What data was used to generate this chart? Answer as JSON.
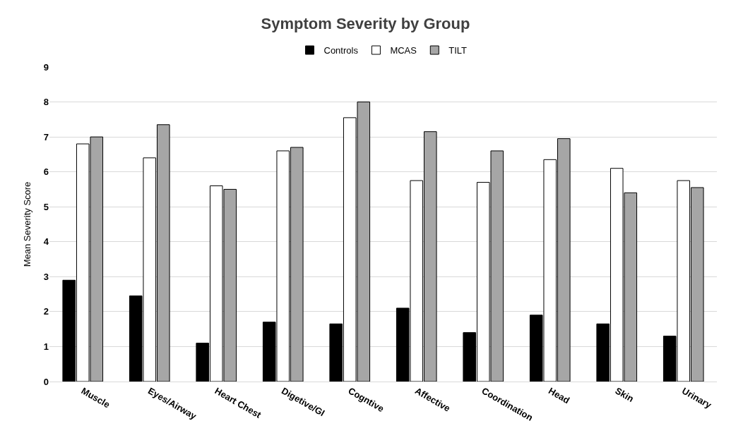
{
  "chart_data": {
    "type": "bar",
    "title": "Symptom Severity by Group",
    "ylabel": "Mean Severity Score",
    "categories": [
      "Muscle",
      "Eyes/Airway",
      "Heart Chest",
      "Digetive/GI",
      "Cogntive",
      "Affective",
      "Coordination",
      "Head",
      "Skin",
      "Urinary"
    ],
    "series": [
      {
        "name": "Controls",
        "color": "#000000",
        "values": [
          2.9,
          2.45,
          1.1,
          1.7,
          1.65,
          2.1,
          1.4,
          1.9,
          1.65,
          1.3
        ]
      },
      {
        "name": "MCAS",
        "color": "#ffffff",
        "values": [
          6.8,
          6.4,
          5.6,
          6.6,
          7.55,
          5.75,
          5.7,
          6.35,
          6.1,
          5.75
        ]
      },
      {
        "name": "TILT",
        "color": "#a6a6a6",
        "values": [
          7.0,
          7.35,
          5.5,
          6.7,
          8.0,
          7.15,
          6.6,
          6.95,
          5.4,
          5.55
        ]
      }
    ],
    "ylim": [
      0,
      9
    ],
    "yticks": [
      0,
      1,
      2,
      3,
      4,
      5,
      6,
      7,
      8,
      9
    ],
    "grid": "y",
    "legend": "top"
  }
}
